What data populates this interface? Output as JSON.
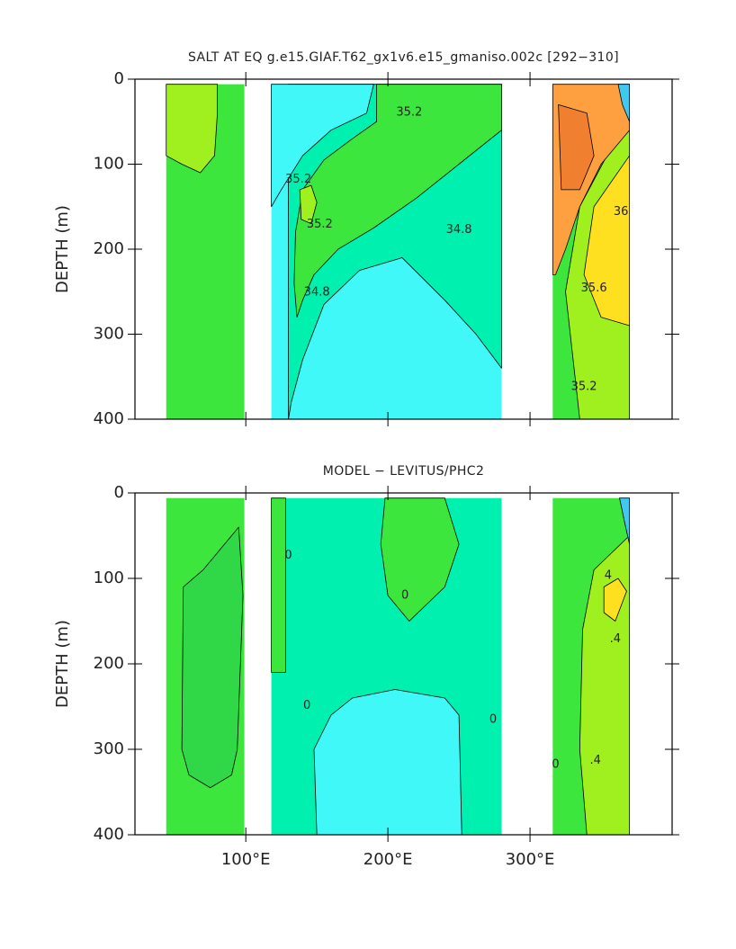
{
  "chart_data": [
    {
      "type": "contour",
      "title": "SALT AT EQ g.e15.GIAF.T62_gx1v6.e15_gmaniso.002c [292−310]",
      "ylabel": "DEPTH (m)",
      "xlim": [
        22,
        400
      ],
      "xticks": [
        100,
        200,
        300
      ],
      "xtick_labels": false,
      "ylim": [
        0,
        400
      ],
      "yticks": [
        0,
        100,
        200,
        300,
        400
      ],
      "y_inverted": true,
      "contour_lines": true,
      "basins": [
        {
          "lon": [
            44,
            99
          ],
          "depth": [
            6,
            400
          ],
          "color": "#3ce63c"
        },
        {
          "lon": [
            118,
            280
          ],
          "depth": [
            6,
            400
          ],
          "color": "#40f8f8"
        },
        {
          "lon": [
            316,
            370
          ],
          "depth": [
            6,
            400
          ],
          "color": "#3ce63c"
        }
      ],
      "regions": [
        {
          "color": "#a0f020",
          "points": [
            [
              44,
              6
            ],
            [
              80,
              6
            ],
            [
              80,
              40
            ],
            [
              78,
              90
            ],
            [
              68,
              110
            ],
            [
              55,
              100
            ],
            [
              44,
              90
            ]
          ]
        },
        {
          "color": "#00f0b0",
          "points": [
            [
              130,
              6
            ],
            [
              280,
              6
            ],
            [
              280,
              340
            ],
            [
              262,
              300
            ],
            [
              240,
              260
            ],
            [
              210,
              210
            ],
            [
              180,
              225
            ],
            [
              155,
              265
            ],
            [
              140,
              330
            ],
            [
              132,
              380
            ],
            [
              130,
              400
            ]
          ]
        },
        {
          "color": "#40f8f8",
          "points": [
            [
              118,
              6
            ],
            [
              190,
              6
            ],
            [
              185,
              40
            ],
            [
              160,
              60
            ],
            [
              140,
              90
            ],
            [
              125,
              130
            ],
            [
              118,
              150
            ]
          ]
        },
        {
          "color": "#3ce63c",
          "points": [
            [
              192,
              6
            ],
            [
              280,
              6
            ],
            [
              280,
              60
            ],
            [
              250,
              100
            ],
            [
              220,
              140
            ],
            [
              190,
              175
            ],
            [
              165,
              200
            ],
            [
              148,
              230
            ],
            [
              140,
              260
            ],
            [
              136,
              280
            ],
            [
              134,
              240
            ],
            [
              135,
              180
            ],
            [
              140,
              130
            ],
            [
              155,
              95
            ],
            [
              175,
              70
            ],
            [
              192,
              50
            ]
          ]
        },
        {
          "color": "#a0f020",
          "points": [
            [
              138,
              130
            ],
            [
              146,
              125
            ],
            [
              150,
              145
            ],
            [
              146,
              170
            ],
            [
              139,
              165
            ]
          ]
        },
        {
          "color": "#a0f020",
          "points": [
            [
              335,
              400
            ],
            [
              325,
              250
            ],
            [
              335,
              150
            ],
            [
              370,
              40
            ],
            [
              370,
              400
            ]
          ]
        },
        {
          "color": "#ffe020",
          "points": [
            [
              370,
              90
            ],
            [
              345,
              150
            ],
            [
              338,
              230
            ],
            [
              350,
              280
            ],
            [
              370,
              290
            ]
          ]
        },
        {
          "color": "#ffa040",
          "points": [
            [
              316,
              6
            ],
            [
              370,
              6
            ],
            [
              370,
              60
            ],
            [
              350,
              100
            ],
            [
              335,
              150
            ],
            [
              325,
              200
            ],
            [
              318,
              230
            ],
            [
              316,
              230
            ]
          ]
        },
        {
          "color": "#f08030",
          "points": [
            [
              320,
              30
            ],
            [
              340,
              40
            ],
            [
              345,
              90
            ],
            [
              335,
              130
            ],
            [
              322,
              130
            ]
          ]
        },
        {
          "color": "#40c8f0",
          "points": [
            [
              362,
              6
            ],
            [
              370,
              6
            ],
            [
              370,
              50
            ],
            [
              365,
              30
            ]
          ]
        }
      ],
      "annotations": [
        {
          "text": "35.2",
          "x": 215,
          "y": 39
        },
        {
          "text": "35.2",
          "x": 137,
          "y": 118
        },
        {
          "text": "35.2",
          "x": 152,
          "y": 171
        },
        {
          "text": "34.8",
          "x": 250,
          "y": 177
        },
        {
          "text": "34.8",
          "x": 150,
          "y": 251
        },
        {
          "text": "36",
          "x": 364,
          "y": 156
        },
        {
          "text": "35.6",
          "x": 345,
          "y": 246
        },
        {
          "text": "35.2",
          "x": 338,
          "y": 362
        }
      ]
    },
    {
      "type": "contour",
      "title": "MODEL − LEVITUS/PHC2",
      "ylabel": "DEPTH (m)",
      "xlim": [
        22,
        400
      ],
      "xticks": [
        {
          "value": 100,
          "label": "100°E"
        },
        {
          "value": 200,
          "label": "200°E"
        },
        {
          "value": 300,
          "label": "300°E"
        }
      ],
      "xtick_labels": true,
      "ylim": [
        0,
        400
      ],
      "yticks": [
        0,
        100,
        200,
        300,
        400
      ],
      "y_inverted": true,
      "contour_lines": true,
      "basins": [
        {
          "lon": [
            44,
            99
          ],
          "depth": [
            6,
            400
          ],
          "color": "#3ce63c"
        },
        {
          "lon": [
            118,
            280
          ],
          "depth": [
            6,
            400
          ],
          "color": "#00f0b0"
        },
        {
          "lon": [
            316,
            370
          ],
          "depth": [
            6,
            400
          ],
          "color": "#3ce63c"
        }
      ],
      "regions": [
        {
          "color": "#30d848",
          "points": [
            [
              56,
              110
            ],
            [
              70,
              90
            ],
            [
              95,
              40
            ],
            [
              98,
              120
            ],
            [
              94,
              300
            ],
            [
              90,
              330
            ],
            [
              75,
              345
            ],
            [
              60,
              330
            ],
            [
              55,
              300
            ]
          ]
        },
        {
          "color": "#3ce63c",
          "points": [
            [
              118,
              6
            ],
            [
              128,
              6
            ],
            [
              128,
              210
            ],
            [
              118,
              210
            ]
          ]
        },
        {
          "color": "#3ce63c",
          "points": [
            [
              198,
              6
            ],
            [
              240,
              6
            ],
            [
              250,
              60
            ],
            [
              240,
              110
            ],
            [
              215,
              150
            ],
            [
              200,
              120
            ],
            [
              195,
              60
            ]
          ]
        },
        {
          "color": "#40f8f8",
          "points": [
            [
              150,
              400
            ],
            [
              148,
              300
            ],
            [
              160,
              260
            ],
            [
              175,
              240
            ],
            [
              205,
              230
            ],
            [
              240,
              240
            ],
            [
              250,
              260
            ],
            [
              252,
              400
            ]
          ]
        },
        {
          "color": "#a0f020",
          "points": [
            [
              340,
              400
            ],
            [
              335,
              300
            ],
            [
              337,
              160
            ],
            [
              345,
              90
            ],
            [
              370,
              50
            ],
            [
              370,
              400
            ]
          ]
        },
        {
          "color": "#ffe020",
          "points": [
            [
              352,
              110
            ],
            [
              362,
              100
            ],
            [
              368,
              115
            ],
            [
              360,
              150
            ],
            [
              352,
              140
            ]
          ]
        },
        {
          "color": "#40c8f0",
          "points": [
            [
              363,
              6
            ],
            [
              370,
              6
            ],
            [
              370,
              60
            ],
            [
              366,
              30
            ]
          ]
        }
      ],
      "annotations": [
        {
          "text": "0",
          "x": 130,
          "y": 73
        },
        {
          "text": "0",
          "x": 212,
          "y": 120
        },
        {
          "text": "0",
          "x": 143,
          "y": 249
        },
        {
          "text": "0",
          "x": 274,
          "y": 265
        },
        {
          "text": "0",
          "x": 318,
          "y": 318
        },
        {
          "text": "4",
          "x": 355,
          "y": 97
        },
        {
          "text": ".4",
          "x": 360,
          "y": 171
        },
        {
          "text": ".4",
          "x": 346,
          "y": 313
        }
      ]
    }
  ]
}
